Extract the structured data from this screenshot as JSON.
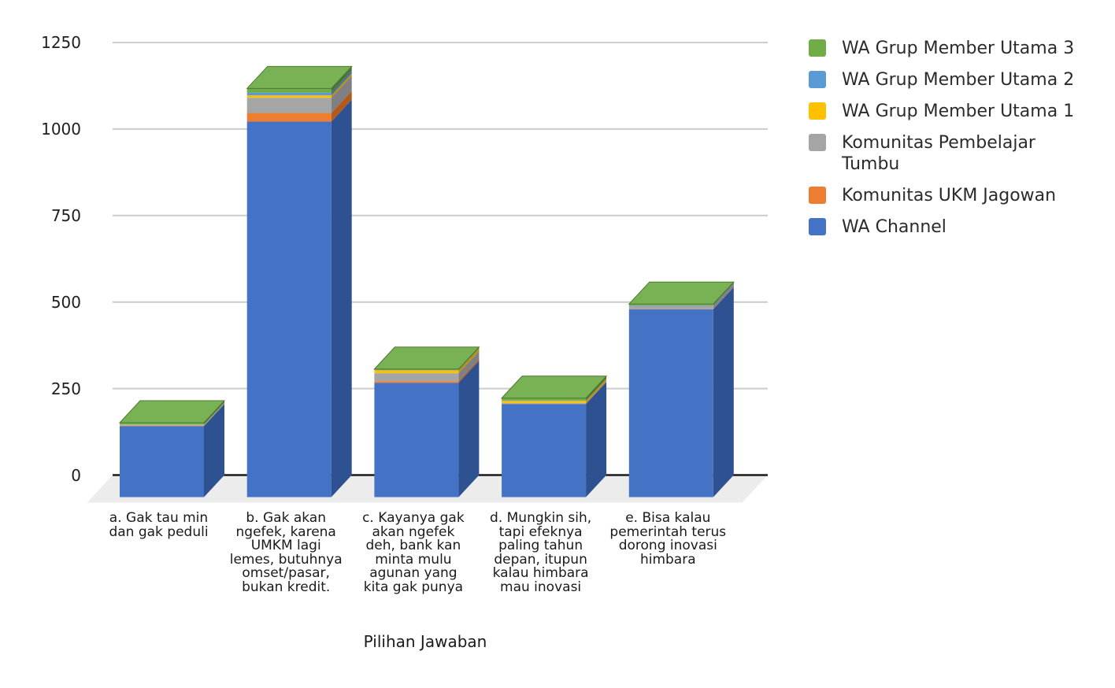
{
  "colors": {
    "background": "#ffffff",
    "gridline": "#cccccc",
    "axis_line": "#1a1a1a",
    "floor": "#ececec",
    "text": "#1a1a1a"
  },
  "chart_data": {
    "type": "bar",
    "variant": "3d-stacked-column",
    "title": "",
    "xlabel": "Pilihan Jawaban",
    "ylabel": "",
    "ylim": [
      0,
      1250
    ],
    "y_ticks": [
      "0",
      "250",
      "500",
      "750",
      "1000",
      "1250"
    ],
    "y_tick_values": [
      0,
      250,
      500,
      750,
      1000,
      1250
    ],
    "grid": true,
    "legend_position": "right",
    "categories": [
      "a. Gak tau min dan gak peduli",
      "b. Gak akan ngefek, karena UMKM lagi lemes, butuhnya omset/pasar, bukan kredit.",
      "c. Kayanya gak akan ngefek deh, bank kan minta mulu agunan yang kita gak punya",
      "d. Mungkin sih, tapi efeknya paling tahun depan, itupun kalau himbara mau inovasi",
      "e. Bisa kalau pemerintah terus dorong inovasi himbara"
    ],
    "category_lines": [
      [
        "a. Gak tau min",
        "dan gak peduli"
      ],
      [
        "b. Gak akan",
        "ngefek, karena",
        "UMKM lagi",
        "lemes, butuhnya",
        "omset/pasar,",
        "bukan kredit."
      ],
      [
        "c. Kayanya gak",
        "akan ngefek",
        "deh, bank kan",
        "minta mulu",
        "agunan yang",
        "kita gak punya"
      ],
      [
        "d. Mungkin sih,",
        "tapi efeknya",
        "paling tahun",
        "depan, itupun",
        "kalau himbara",
        "mau inovasi"
      ],
      [
        "e. Bisa kalau",
        "pemerintah terus",
        "dorong inovasi",
        "himbara"
      ]
    ],
    "series": [
      {
        "name": "WA Channel",
        "color": "#4472c4",
        "side_color": "#2e5191",
        "values": [
          205,
          1085,
          330,
          269,
          543
        ]
      },
      {
        "name": "Komunitas UKM Jagowan",
        "color": "#ed7d31",
        "side_color": "#b35a1a",
        "values": [
          1,
          25,
          5,
          1,
          1
        ]
      },
      {
        "name": "Komunitas Pembelajar Tumbu",
        "color": "#a5a5a5",
        "side_color": "#7f7f84",
        "values": [
          2,
          44,
          23,
          2,
          9
        ]
      },
      {
        "name": "WA Grup Member Utama 1",
        "color": "#ffc000",
        "side_color": "#bd8f04",
        "values": [
          1,
          7,
          8,
          6,
          0
        ]
      },
      {
        "name": "WA Grup Member Utama 2",
        "color": "#5b9bd5",
        "side_color": "#3a72a8",
        "values": [
          1,
          8,
          1,
          1,
          1
        ]
      },
      {
        "name": "WA Grup Member Utama 3",
        "color": "#70ad47",
        "side_color": "#4b742f",
        "top_color": "#79b155",
        "top_edge": "#4d7a31",
        "values": [
          5,
          12,
          3,
          7,
          4
        ]
      }
    ],
    "totals": [
      215,
      1181,
      370,
      286,
      558
    ]
  }
}
